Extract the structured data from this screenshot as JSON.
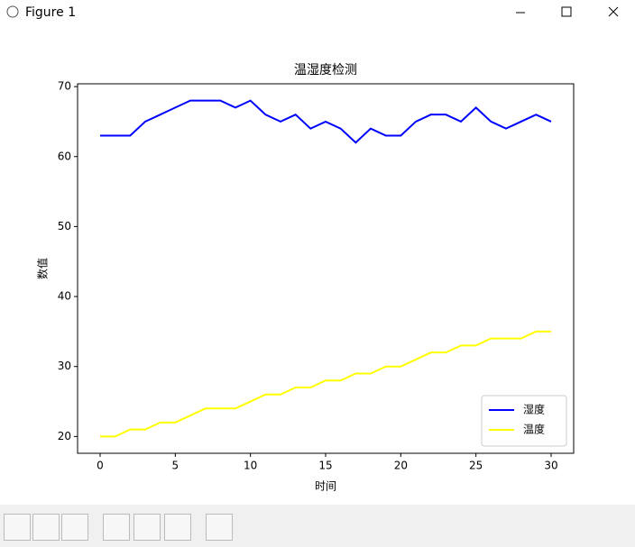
{
  "window": {
    "title": "Figure 1"
  },
  "chart_data": {
    "type": "line",
    "title": "温湿度检测",
    "xlabel": "时间",
    "ylabel": "数值",
    "x": [
      0,
      1,
      2,
      3,
      4,
      5,
      6,
      7,
      8,
      9,
      10,
      11,
      12,
      13,
      14,
      15,
      16,
      17,
      18,
      19,
      20,
      21,
      22,
      23,
      24,
      25,
      26,
      27,
      28,
      29,
      30
    ],
    "series": [
      {
        "name": "湿度",
        "color": "#0000ff",
        "values": [
          63,
          63,
          63,
          65,
          66,
          67,
          68,
          68,
          68,
          67,
          68,
          66,
          65,
          66,
          64,
          65,
          64,
          62,
          64,
          63,
          63,
          65,
          66,
          66,
          65,
          67,
          65,
          64,
          65,
          66,
          65
        ]
      },
      {
        "name": "温度",
        "color": "#ffff00",
        "values": [
          20,
          20,
          21,
          21,
          22,
          22,
          23,
          24,
          24,
          24,
          25,
          26,
          26,
          27,
          27,
          28,
          28,
          29,
          29,
          30,
          30,
          31,
          32,
          32,
          33,
          33,
          34,
          34,
          34,
          35,
          35
        ]
      }
    ],
    "xlim": [
      -1.5,
      31.5
    ],
    "xticks": [
      0,
      5,
      10,
      15,
      20,
      25,
      30
    ],
    "ylim": [
      17.6,
      70.4
    ],
    "yticks": [
      20,
      30,
      40,
      50,
      60,
      70
    ],
    "legend": "lower right"
  }
}
